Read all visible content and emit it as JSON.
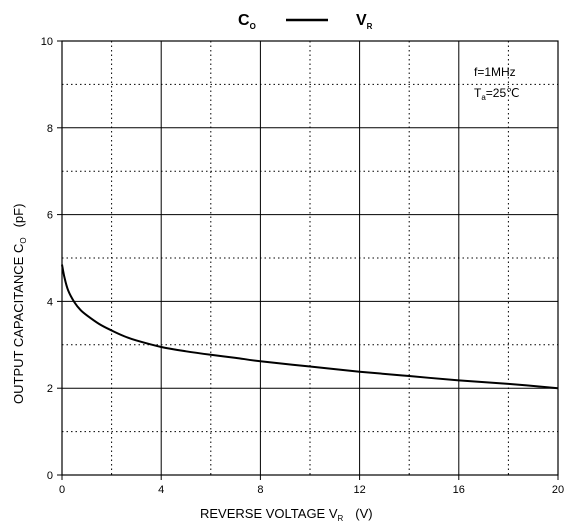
{
  "chart_data": {
    "type": "line",
    "title": {
      "left": "C",
      "left_sub": "O",
      "right": "V",
      "right_sub": "R"
    },
    "xlabel": {
      "text": "REVERSE VOLTAGE   V",
      "sub": "R",
      "unit": "(V)"
    },
    "ylabel": {
      "text": "OUTPUT CAPACITANCE   C",
      "sub": "O",
      "unit": "(pF)"
    },
    "xlim": [
      0,
      20
    ],
    "ylim": [
      0,
      10
    ],
    "x_ticks": [
      "0",
      "4",
      "8",
      "12",
      "16",
      "20"
    ],
    "y_ticks": [
      "0",
      "2",
      "4",
      "6",
      "8",
      "10"
    ],
    "grid": {
      "major": "solid",
      "minor": "dotted"
    },
    "annotations": {
      "freq": "f=1MHz",
      "temp_main": "T",
      "temp_sub": "a",
      "temp_value": "=25℃"
    },
    "series": [
      {
        "x": [
          0,
          0.1,
          0.25,
          0.5,
          0.75,
          1,
          1.5,
          2,
          2.5,
          3,
          4,
          5,
          6,
          7,
          8,
          10,
          12,
          14,
          16,
          18,
          20
        ],
        "y": [
          4.85,
          4.55,
          4.25,
          3.98,
          3.8,
          3.68,
          3.48,
          3.33,
          3.2,
          3.1,
          2.95,
          2.85,
          2.77,
          2.7,
          2.62,
          2.5,
          2.38,
          2.28,
          2.18,
          2.1,
          2.0
        ]
      }
    ]
  }
}
